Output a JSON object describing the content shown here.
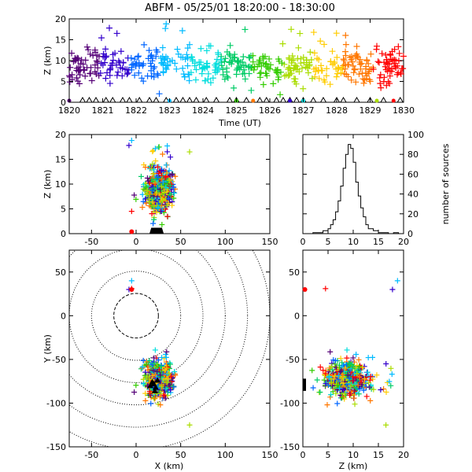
{
  "title": "ABFM - 05/25/01 18:20:00 - 18:30:00",
  "colors": {
    "time_scale": [
      "#550077",
      "#3300cc",
      "#0066ff",
      "#00bbff",
      "#00dddd",
      "#00cc66",
      "#33cc00",
      "#aadd00",
      "#ffcc00",
      "#ff7700",
      "#ff0000"
    ],
    "station": "#000000",
    "dotted": "#000000"
  },
  "chart_data": [
    {
      "id": "time_height",
      "type": "scatter",
      "xlabel": "Time (UT)",
      "ylabel": "Z (km)",
      "xlim": [
        1820,
        1830
      ],
      "ylim": [
        0,
        20
      ],
      "x_ticks": [
        "1820",
        "1821",
        "1822",
        "1823",
        "1824",
        "1825",
        "1826",
        "1827",
        "1828",
        "1829",
        "1830"
      ],
      "y_ticks": [
        "0",
        "5",
        "10",
        "15",
        "20"
      ],
      "station_triangles_x": [
        1820.4,
        1820.6,
        1820.8,
        1821.1,
        1821.3,
        1821.6,
        1821.8,
        1822.1,
        1822.4,
        1822.6,
        1822.9,
        1823.2,
        1823.4,
        1823.6,
        1823.8,
        1824.1,
        1824.4,
        1824.8,
        1825.0,
        1825.3,
        1825.7,
        1825.9,
        1826.2,
        1826.4,
        1826.6,
        1826.8,
        1827.0,
        1827.3,
        1827.6,
        1828.0,
        1828.2,
        1828.6,
        1829.0,
        1829.4,
        1829.9
      ],
      "ground_markers_x": [
        1820.0,
        1823.0,
        1825.0,
        1825.5,
        1826.6,
        1827.0,
        1829.2,
        1829.7
      ]
    },
    {
      "id": "x_height",
      "type": "scatter",
      "xlabel": "",
      "ylabel": "Z (km)",
      "xlim": [
        -75,
        150
      ],
      "ylim": [
        0,
        20
      ],
      "x_ticks": [
        "-50",
        "0",
        "50",
        "100",
        "150"
      ],
      "y_ticks": [
        "0",
        "5",
        "10",
        "15",
        "20"
      ]
    },
    {
      "id": "height_histogram",
      "type": "line",
      "xlabel": "",
      "ylabel": "number of sources",
      "xlim": [
        0,
        20
      ],
      "ylim": [
        0,
        100
      ],
      "x_ticks": [
        "0",
        "5",
        "10",
        "15",
        "20"
      ],
      "y_ticks": [
        "0",
        "20",
        "40",
        "60",
        "80",
        "100"
      ],
      "bins_km": [
        1,
        2,
        3,
        4,
        5,
        5.5,
        6,
        6.5,
        7,
        7.5,
        8,
        8.5,
        9,
        9.5,
        10,
        10.5,
        11,
        11.5,
        12,
        12.5,
        13,
        14,
        15,
        16,
        17,
        18,
        19
      ],
      "counts": [
        0,
        1,
        1,
        3,
        5,
        9,
        14,
        22,
        33,
        48,
        66,
        80,
        90,
        86,
        72,
        52,
        38,
        26,
        17,
        9,
        5,
        3,
        1,
        1,
        0,
        1,
        0
      ]
    },
    {
      "id": "plan_view",
      "type": "scatter",
      "xlabel": "X (km)",
      "ylabel": "Y (km)",
      "xlim": [
        -75,
        150
      ],
      "ylim": [
        -150,
        75
      ],
      "x_ticks": [
        "-50",
        "0",
        "50",
        "100",
        "150"
      ],
      "y_ticks": [
        "-150",
        "-100",
        "-50",
        "0",
        "50"
      ],
      "range_rings_km": [
        25,
        50,
        75,
        100,
        125,
        150
      ]
    },
    {
      "id": "z_y",
      "type": "scatter",
      "xlabel": "Z (km)",
      "ylabel": "",
      "xlim": [
        0,
        20
      ],
      "ylim": [
        -150,
        75
      ],
      "x_ticks": [
        "0",
        "5",
        "10",
        "15",
        "20"
      ],
      "y_ticks": [
        "-150",
        "-100",
        "-50",
        "0",
        "50"
      ]
    }
  ]
}
